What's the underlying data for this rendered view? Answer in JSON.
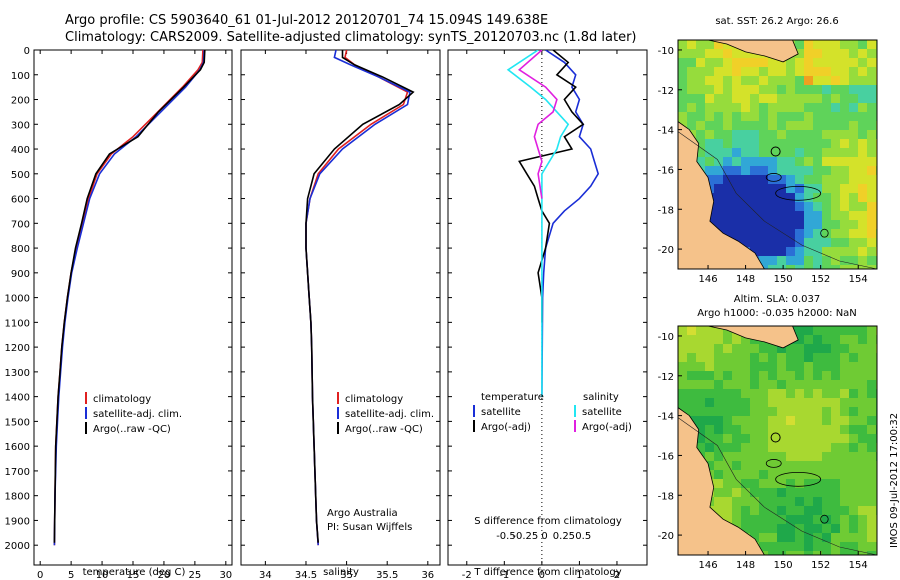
{
  "header": {
    "line1": "Argo profile: CS 5903640_61 01-Jul-2012 20120701_74 15.094S 149.638E",
    "line2": "Climatology: CARS2009. Satellite-adjusted climatology: synTS_20120703.nc (1.8d later)"
  },
  "colors": {
    "clim": "#e02020",
    "sat": "#1a2ed6",
    "argo": "#000000",
    "sat_s": "#22e6f2",
    "argo_s": "#e020e0",
    "land": "#f5c28a"
  },
  "depth_axis": {
    "ticks": [
      0,
      100,
      200,
      300,
      400,
      500,
      600,
      700,
      800,
      900,
      1000,
      1100,
      1200,
      1300,
      1400,
      1500,
      1600,
      1700,
      1800,
      1900,
      2000
    ],
    "range": [
      0,
      2080
    ]
  },
  "legend": {
    "clim": "climatology",
    "sat": "satellite-adj. clim.",
    "argo": "Argo(..raw -QC)"
  },
  "diff_legend": {
    "t_head": "temperature",
    "s_head": "salinity",
    "t_sat": "satellite",
    "t_argo": "Argo(-adj)",
    "s_sat": "satellite",
    "s_argo": "Argo(-adj)"
  },
  "credits": {
    "line1": "Argo Australia",
    "line2": "PI: Susan Wijffels"
  },
  "diff_labels": {
    "s_label": "S difference from climatology",
    "t_label": "T difference from climatology"
  },
  "map1": {
    "title": "sat. SST: 26.2 Argo: 26.6"
  },
  "map2": {
    "title1": "Altim. SLA: 0.037",
    "title2": "Argo h1000: -0.035 h2000: NaN"
  },
  "stamp": "IMOS 09-Jul-2012 17:00:32",
  "chart_data": [
    {
      "type": "line",
      "name": "temperature",
      "xlabel": "temperature (deg C)",
      "xlim": [
        -1,
        31
      ],
      "xticks": [
        0,
        5,
        10,
        15,
        20,
        25,
        30
      ],
      "ylim": [
        0,
        2080
      ],
      "series": [
        {
          "name": "climatology",
          "color_key": "clim",
          "x": [
            26.3,
            26.2,
            25.5,
            23.0,
            19.0,
            15.0,
            11.5,
            9.2,
            7.8,
            6.8,
            5.8,
            5.0,
            4.4,
            3.9,
            3.5,
            3.2,
            2.9,
            2.7,
            2.5,
            2.4,
            2.3
          ],
          "y": [
            0,
            50,
            80,
            150,
            250,
            350,
            420,
            500,
            600,
            700,
            800,
            900,
            1000,
            1100,
            1200,
            1300,
            1400,
            1500,
            1600,
            1800,
            2000
          ]
        },
        {
          "name": "satellite-adj. clim.",
          "color_key": "sat",
          "x": [
            26.5,
            26.4,
            25.8,
            23.5,
            19.5,
            15.5,
            12.0,
            9.6,
            8.0,
            7.0,
            6.0,
            5.1,
            4.5,
            4.0,
            3.6,
            3.3,
            3.0,
            2.8,
            2.6,
            2.4,
            2.3
          ],
          "y": [
            0,
            50,
            80,
            150,
            250,
            350,
            420,
            500,
            600,
            700,
            800,
            900,
            1000,
            1100,
            1200,
            1300,
            1400,
            1500,
            1600,
            1800,
            2000
          ]
        },
        {
          "name": "Argo(..raw -QC)",
          "color_key": "argo",
          "x": [
            26.6,
            26.5,
            25.9,
            23.2,
            19.1,
            15.8,
            11.2,
            9.0,
            7.6,
            6.7,
            5.7,
            5.0,
            4.4,
            3.9,
            3.5,
            3.2,
            2.9,
            2.7,
            2.5,
            2.4,
            2.3
          ],
          "y": [
            0,
            50,
            80,
            150,
            250,
            350,
            420,
            500,
            600,
            700,
            800,
            900,
            1000,
            1100,
            1200,
            1300,
            1400,
            1500,
            1600,
            1800,
            1990
          ]
        }
      ]
    },
    {
      "type": "line",
      "name": "salinity",
      "xlabel": "salinity",
      "xlim": [
        33.7,
        36.15
      ],
      "xticks": [
        34,
        34.5,
        35,
        35.5,
        36
      ],
      "ylim": [
        0,
        2080
      ],
      "series": [
        {
          "name": "climatology",
          "color_key": "clim",
          "x": [
            35.0,
            34.98,
            35.1,
            35.4,
            35.75,
            35.7,
            35.3,
            34.9,
            34.65,
            34.55,
            34.5,
            34.5,
            34.52,
            34.54,
            34.56,
            34.57,
            34.58,
            34.6,
            34.62,
            34.63,
            34.65
          ],
          "y": [
            0,
            30,
            60,
            110,
            170,
            220,
            300,
            400,
            500,
            600,
            700,
            800,
            900,
            1000,
            1100,
            1200,
            1400,
            1600,
            1800,
            1900,
            2000
          ]
        },
        {
          "name": "satellite-adj. clim.",
          "color_key": "sat",
          "x": [
            34.87,
            34.85,
            35.05,
            35.4,
            35.78,
            35.75,
            35.35,
            34.95,
            34.67,
            34.55,
            34.5,
            34.5,
            34.52,
            34.54,
            34.56,
            34.57,
            34.58,
            34.6,
            34.62,
            34.63,
            34.65
          ],
          "y": [
            0,
            30,
            60,
            110,
            170,
            220,
            300,
            400,
            500,
            600,
            700,
            800,
            900,
            1000,
            1100,
            1200,
            1400,
            1600,
            1800,
            1900,
            2000
          ]
        },
        {
          "name": "Argo(..raw -QC)",
          "color_key": "argo",
          "x": [
            34.95,
            34.95,
            35.1,
            35.45,
            35.82,
            35.65,
            35.2,
            34.85,
            34.6,
            34.52,
            34.5,
            34.5,
            34.52,
            34.54,
            34.56,
            34.57,
            34.58,
            34.6,
            34.62,
            34.63,
            34.65
          ],
          "y": [
            0,
            30,
            60,
            110,
            170,
            220,
            300,
            400,
            500,
            600,
            700,
            800,
            900,
            1000,
            1100,
            1200,
            1400,
            1600,
            1800,
            1900,
            1990
          ]
        }
      ]
    },
    {
      "type": "line",
      "name": "differences",
      "xlabel_top": "S difference from climatology",
      "xlabel": "T difference from climatology",
      "xlim": [
        -2.5,
        2.8
      ],
      "xticks": [
        -2,
        -1,
        0,
        1,
        2
      ],
      "top_ticks": [
        -0.5,
        -0.25,
        0,
        0.25,
        0.5
      ],
      "ylim": [
        0,
        2080
      ],
      "series": [
        {
          "name": "T satellite",
          "color_key": "sat",
          "x": [
            0.1,
            0.6,
            0.9,
            0.8,
            1.0,
            0.9,
            1.1,
            1.0,
            1.3,
            1.4,
            1.5,
            1.3,
            1.0,
            0.6,
            0.3,
            0.1,
            0.05,
            0.02,
            0.0
          ],
          "y": [
            0,
            50,
            100,
            150,
            200,
            250,
            300,
            350,
            400,
            450,
            500,
            550,
            600,
            650,
            700,
            800,
            900,
            1000,
            1400
          ]
        },
        {
          "name": "T Argo(-adj)",
          "color_key": "argo",
          "x": [
            0.3,
            0.7,
            0.4,
            0.9,
            0.6,
            0.8,
            1.1,
            0.6,
            0.8,
            -0.6,
            -0.4,
            -0.2,
            -0.1,
            0.0,
            0.2,
            0.1,
            -0.1,
            0.0,
            0.0
          ],
          "y": [
            0,
            50,
            100,
            150,
            200,
            250,
            300,
            350,
            400,
            450,
            500,
            550,
            600,
            650,
            700,
            800,
            900,
            1000,
            1100
          ]
        },
        {
          "name": "S satellite",
          "color_key": "sat_s",
          "x": [
            -0.1,
            -0.9,
            -0.3,
            0.1,
            0.4,
            0.7,
            0.5,
            0.4,
            0.2,
            0.0,
            0.0,
            0.0,
            0.0,
            0.0
          ],
          "y": [
            0,
            80,
            150,
            200,
            250,
            300,
            350,
            400,
            450,
            500,
            600,
            800,
            1000,
            1400
          ]
        },
        {
          "name": "S Argo(-adj)",
          "color_key": "argo_s",
          "x": [
            0.0,
            -0.6,
            0.1,
            0.4,
            0.3,
            -0.1,
            -0.2,
            -0.1,
            0.0,
            -0.1,
            0.0
          ],
          "y": [
            0,
            80,
            150,
            200,
            250,
            300,
            350,
            400,
            450,
            500,
            600
          ]
        }
      ]
    }
  ],
  "maps": [
    {
      "type": "heatmap",
      "xlim": [
        144.4,
        155
      ],
      "xticks": [
        146,
        148,
        150,
        152,
        154
      ],
      "ylim": [
        -9.5,
        -21
      ],
      "yticks": [
        -10,
        -12,
        -14,
        -16,
        -18,
        -20
      ],
      "float_marker": [
        149.6,
        -15.1
      ]
    },
    {
      "type": "heatmap",
      "xlim": [
        144.4,
        155
      ],
      "xticks": [
        146,
        148,
        150,
        152,
        154
      ],
      "ylim": [
        -9.5,
        -21
      ],
      "yticks": [
        -10,
        -12,
        -14,
        -16,
        -18,
        -20
      ],
      "float_marker": [
        149.6,
        -15.1
      ]
    }
  ]
}
